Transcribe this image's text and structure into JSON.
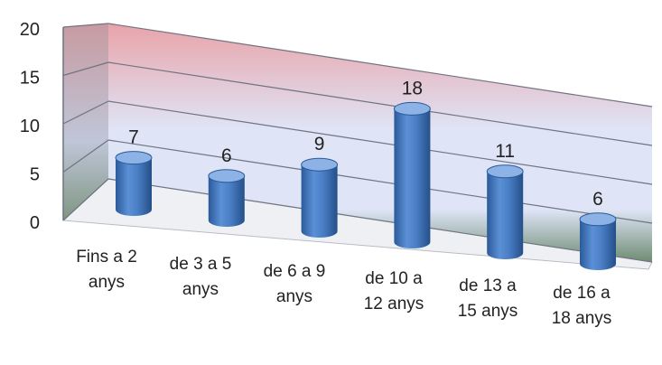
{
  "chart_data": {
    "type": "bar",
    "style": "3d-cylinder",
    "categories": [
      [
        "Fins a 2",
        "anys"
      ],
      [
        "de 3 a 5",
        "anys"
      ],
      [
        "de 6 a 9",
        "anys"
      ],
      [
        "de 10 a",
        "12 anys"
      ],
      [
        "de 13 a",
        "15 anys"
      ],
      [
        "de 16 a",
        "18 anys"
      ]
    ],
    "values": [
      7,
      6,
      9,
      18,
      11,
      6
    ],
    "data_labels": [
      "7",
      "6",
      "9",
      "18",
      "11",
      "6"
    ],
    "ylim": [
      0,
      20
    ],
    "yticks": [
      "0",
      "5",
      "10",
      "15",
      "20"
    ],
    "grid": true,
    "legend": "none",
    "colors": {
      "bar": "#4a7fc6",
      "bar_dark": "#2b5a9a",
      "bar_light": "#8cb2e6",
      "wall_top": "#e9a3a9",
      "wall_mid": "#dfe5f7",
      "wall_bottom": "#6e8c73",
      "side_wall_top": "#c89aa1",
      "side_wall_bottom": "#7f9682"
    }
  }
}
